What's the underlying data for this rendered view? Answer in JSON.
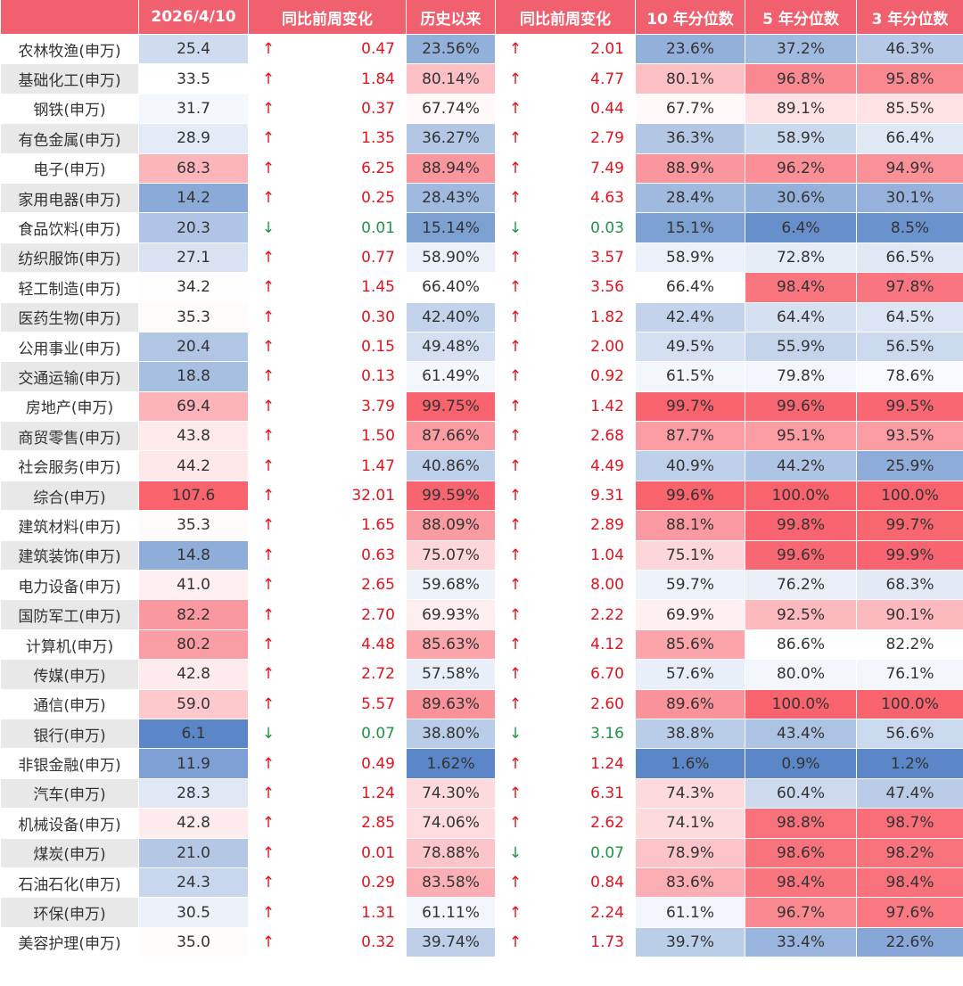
{
  "table": {
    "headers": [
      "",
      "2026/4/10",
      "同比前周变化",
      "历史以来",
      "同比前周变化",
      "10 年分位数",
      "5 年分位数",
      "3 年分位数"
    ],
    "rows": [
      [
        "农林牧渔(申万)",
        "25.4",
        "↑",
        "0.47",
        "23.56%",
        "↑",
        "2.01",
        "23.6%",
        "37.2%",
        "46.3%"
      ],
      [
        "基础化工(申万)",
        "33.5",
        "↑",
        "1.84",
        "80.14%",
        "↑",
        "4.77",
        "80.1%",
        "96.8%",
        "95.8%"
      ],
      [
        "钢铁(申万)",
        "31.7",
        "↑",
        "0.37",
        "67.74%",
        "↑",
        "0.44",
        "67.7%",
        "89.1%",
        "85.5%"
      ],
      [
        "有色金属(申万)",
        "28.9",
        "↑",
        "1.35",
        "36.27%",
        "↑",
        "2.79",
        "36.3%",
        "58.9%",
        "66.4%"
      ],
      [
        "电子(申万)",
        "68.3",
        "↑",
        "6.25",
        "88.94%",
        "↑",
        "7.49",
        "88.9%",
        "96.2%",
        "94.9%"
      ],
      [
        "家用电器(申万)",
        "14.2",
        "↑",
        "0.25",
        "28.43%",
        "↑",
        "4.63",
        "28.4%",
        "30.6%",
        "30.1%"
      ],
      [
        "食品饮料(申万)",
        "20.3",
        "↓",
        "0.01",
        "15.14%",
        "↓",
        "0.03",
        "15.1%",
        "6.4%",
        "8.5%"
      ],
      [
        "纺织服饰(申万)",
        "27.1",
        "↑",
        "0.77",
        "58.90%",
        "↑",
        "3.57",
        "58.9%",
        "72.8%",
        "66.5%"
      ],
      [
        "轻工制造(申万)",
        "34.2",
        "↑",
        "1.45",
        "66.40%",
        "↑",
        "3.56",
        "66.4%",
        "98.4%",
        "97.8%"
      ],
      [
        "医药生物(申万)",
        "35.3",
        "↑",
        "0.30",
        "42.40%",
        "↑",
        "1.82",
        "42.4%",
        "64.4%",
        "64.5%"
      ],
      [
        "公用事业(申万)",
        "20.4",
        "↑",
        "0.15",
        "49.48%",
        "↑",
        "2.00",
        "49.5%",
        "55.9%",
        "56.5%"
      ],
      [
        "交通运输(申万)",
        "18.8",
        "↑",
        "0.13",
        "61.49%",
        "↑",
        "0.92",
        "61.5%",
        "79.8%",
        "78.6%"
      ],
      [
        "房地产(申万)",
        "69.4",
        "↑",
        "3.79",
        "99.75%",
        "↑",
        "1.42",
        "99.7%",
        "99.6%",
        "99.5%"
      ],
      [
        "商贸零售(申万)",
        "43.8",
        "↑",
        "1.50",
        "87.66%",
        "↑",
        "2.68",
        "87.7%",
        "95.1%",
        "93.5%"
      ],
      [
        "社会服务(申万)",
        "44.2",
        "↑",
        "1.47",
        "40.86%",
        "↑",
        "4.49",
        "40.9%",
        "44.2%",
        "25.9%"
      ],
      [
        "综合(申万)",
        "107.6",
        "↑",
        "32.01",
        "99.59%",
        "↑",
        "9.31",
        "99.6%",
        "100.0%",
        "100.0%"
      ],
      [
        "建筑材料(申万)",
        "35.3",
        "↑",
        "1.65",
        "88.09%",
        "↑",
        "2.89",
        "88.1%",
        "99.8%",
        "99.7%"
      ],
      [
        "建筑装饰(申万)",
        "14.8",
        "↑",
        "0.63",
        "75.07%",
        "↑",
        "1.04",
        "75.1%",
        "99.6%",
        "99.9%"
      ],
      [
        "电力设备(申万)",
        "41.0",
        "↑",
        "2.65",
        "59.68%",
        "↑",
        "8.00",
        "59.7%",
        "76.2%",
        "68.3%"
      ],
      [
        "国防军工(申万)",
        "82.2",
        "↑",
        "2.70",
        "69.93%",
        "↑",
        "2.22",
        "69.9%",
        "92.5%",
        "90.1%"
      ],
      [
        "计算机(申万)",
        "80.2",
        "↑",
        "4.48",
        "85.63%",
        "↑",
        "4.12",
        "85.6%",
        "86.6%",
        "82.2%"
      ],
      [
        "传媒(申万)",
        "42.8",
        "↑",
        "2.72",
        "57.58%",
        "↑",
        "6.70",
        "57.6%",
        "80.0%",
        "76.1%"
      ],
      [
        "通信(申万)",
        "59.0",
        "↑",
        "5.57",
        "89.63%",
        "↑",
        "2.60",
        "89.6%",
        "100.0%",
        "100.0%"
      ],
      [
        "银行(申万)",
        "6.1",
        "↓",
        "0.07",
        "38.80%",
        "↓",
        "3.16",
        "38.8%",
        "43.4%",
        "56.6%"
      ],
      [
        "非银金融(申万)",
        "11.9",
        "↑",
        "0.49",
        "1.62%",
        "↑",
        "1.24",
        "1.6%",
        "0.9%",
        "1.2%"
      ],
      [
        "汽车(申万)",
        "28.3",
        "↑",
        "1.24",
        "74.30%",
        "↑",
        "6.31",
        "74.3%",
        "60.4%",
        "47.4%"
      ],
      [
        "机械设备(申万)",
        "42.8",
        "↑",
        "2.85",
        "74.06%",
        "↑",
        "2.62",
        "74.1%",
        "98.8%",
        "98.7%"
      ],
      [
        "煤炭(申万)",
        "21.0",
        "↑",
        "0.01",
        "78.88%",
        "↓",
        "0.07",
        "78.9%",
        "98.6%",
        "98.2%"
      ],
      [
        "石油石化(申万)",
        "24.3",
        "↑",
        "0.29",
        "83.58%",
        "↑",
        "0.84",
        "83.6%",
        "98.4%",
        "98.4%"
      ],
      [
        "环保(申万)",
        "30.5",
        "↑",
        "1.31",
        "61.11%",
        "↑",
        "2.24",
        "61.1%",
        "96.7%",
        "97.6%"
      ],
      [
        "美容护理(申万)",
        "35.0",
        "↑",
        "0.32",
        "39.74%",
        "↑",
        "1.73",
        "39.7%",
        "33.4%",
        "22.6%"
      ]
    ]
  }
}
